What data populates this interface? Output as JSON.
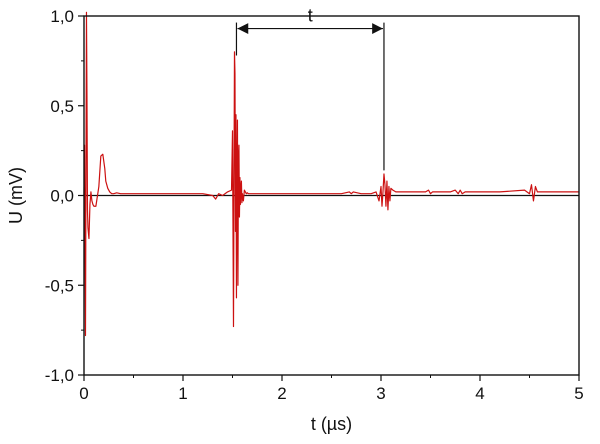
{
  "chart_data": {
    "type": "line",
    "title": "",
    "xlabel": "t (µs)",
    "ylabel": "U (mV)",
    "xlim": [
      0,
      5
    ],
    "ylim": [
      -1.0,
      1.0
    ],
    "grid": false,
    "legend": "none",
    "x_ticks": [
      0,
      1,
      2,
      3,
      4,
      5
    ],
    "x_tick_labels": [
      "0",
      "1",
      "2",
      "3",
      "4",
      "5"
    ],
    "y_ticks": [
      -1.0,
      -0.5,
      0.0,
      0.5,
      1.0
    ],
    "y_tick_labels": [
      "-1,0",
      "-0,5",
      "0,0",
      "0,5",
      "1,0"
    ],
    "zero_line": true,
    "series": [
      {
        "color": "#cc1111",
        "x": [
          0.0,
          0.005,
          0.015,
          0.02,
          0.025,
          0.03,
          0.035,
          0.04,
          0.05,
          0.06,
          0.07,
          0.08,
          0.09,
          0.1,
          0.12,
          0.15,
          0.17,
          0.19,
          0.21,
          0.22,
          0.24,
          0.26,
          0.28,
          0.3,
          0.33,
          0.37,
          0.42,
          0.5,
          0.6,
          0.8,
          1.0,
          1.2,
          1.3,
          1.33,
          1.36,
          1.4,
          1.45,
          1.49,
          1.5,
          1.51,
          1.515,
          1.52,
          1.525,
          1.53,
          1.535,
          1.54,
          1.545,
          1.55,
          1.555,
          1.56,
          1.565,
          1.57,
          1.575,
          1.58,
          1.585,
          1.59,
          1.595,
          1.6,
          1.61,
          1.62,
          1.63,
          1.64,
          1.65,
          1.66,
          1.68,
          1.7,
          1.75,
          1.8,
          2.0,
          2.3,
          2.6,
          2.68,
          2.7,
          2.72,
          2.8,
          2.9,
          2.95,
          2.98,
          3.0,
          3.01,
          3.02,
          3.03,
          3.04,
          3.05,
          3.06,
          3.07,
          3.08,
          3.09,
          3.1,
          3.12,
          3.15,
          3.2,
          3.3,
          3.45,
          3.48,
          3.5,
          3.52,
          3.6,
          3.7,
          3.75,
          3.78,
          3.8,
          3.82,
          3.85,
          3.9,
          4.0,
          4.2,
          4.45,
          4.5,
          4.52,
          4.54,
          4.56,
          4.58,
          4.6,
          4.65,
          4.8,
          5.0
        ],
        "y": [
          0.0,
          0.28,
          -0.78,
          0.12,
          1.02,
          0.55,
          -0.08,
          -0.18,
          -0.24,
          -0.05,
          0.02,
          -0.03,
          -0.05,
          -0.06,
          -0.06,
          0.05,
          0.22,
          0.23,
          0.15,
          0.08,
          0.04,
          0.02,
          0.01,
          0.01,
          0.015,
          0.01,
          0.01,
          0.01,
          0.01,
          0.01,
          0.01,
          0.01,
          0.0,
          -0.02,
          0.01,
          0.0,
          0.02,
          0.03,
          0.36,
          -0.73,
          0.05,
          0.8,
          0.68,
          -0.2,
          0.45,
          -0.57,
          0.1,
          0.42,
          -0.5,
          0.2,
          0.28,
          -0.12,
          0.1,
          -0.05,
          0.04,
          0.08,
          -0.04,
          0.01,
          -0.03,
          0.03,
          0.02,
          0.01,
          0.015,
          0.01,
          0.01,
          0.01,
          0.01,
          0.01,
          0.01,
          0.01,
          0.01,
          0.02,
          0.01,
          0.02,
          0.01,
          0.01,
          0.02,
          -0.03,
          0.05,
          -0.06,
          0.02,
          0.12,
          0.06,
          -0.06,
          0.08,
          -0.08,
          0.05,
          -0.03,
          0.04,
          0.03,
          0.02,
          0.02,
          0.02,
          0.02,
          0.03,
          0.01,
          0.02,
          0.02,
          0.02,
          0.03,
          0.01,
          0.03,
          0.01,
          0.02,
          0.02,
          0.02,
          0.02,
          0.03,
          0.01,
          0.06,
          -0.03,
          0.05,
          0.02,
          0.02,
          0.02,
          0.02,
          0.02
        ]
      }
    ],
    "annotations": [
      {
        "type": "double-arrow",
        "label": "t",
        "x_start": 1.54,
        "x_end": 3.03,
        "y": 0.93,
        "start_drop_to": 0.78,
        "end_drop_to": 0.14
      }
    ]
  }
}
